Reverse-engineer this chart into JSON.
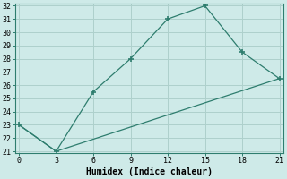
{
  "xlabel": "Humidex (Indice chaleur)",
  "line1_x": [
    0,
    3,
    6,
    9,
    12,
    15,
    18,
    21
  ],
  "line1_y": [
    23,
    21,
    25.5,
    28,
    31,
    32,
    28.5,
    26.5
  ],
  "line2_x": [
    0,
    3,
    21
  ],
  "line2_y": [
    23,
    21,
    26.5
  ],
  "line_color": "#2e7d6e",
  "bg_color": "#ceeae8",
  "grid_color": "#aed0cc",
  "xlim": [
    -0.3,
    21.3
  ],
  "ylim": [
    20.85,
    32.15
  ],
  "xticks": [
    0,
    3,
    6,
    9,
    12,
    15,
    18,
    21
  ],
  "yticks": [
    21,
    22,
    23,
    24,
    25,
    26,
    27,
    28,
    29,
    30,
    31,
    32
  ]
}
